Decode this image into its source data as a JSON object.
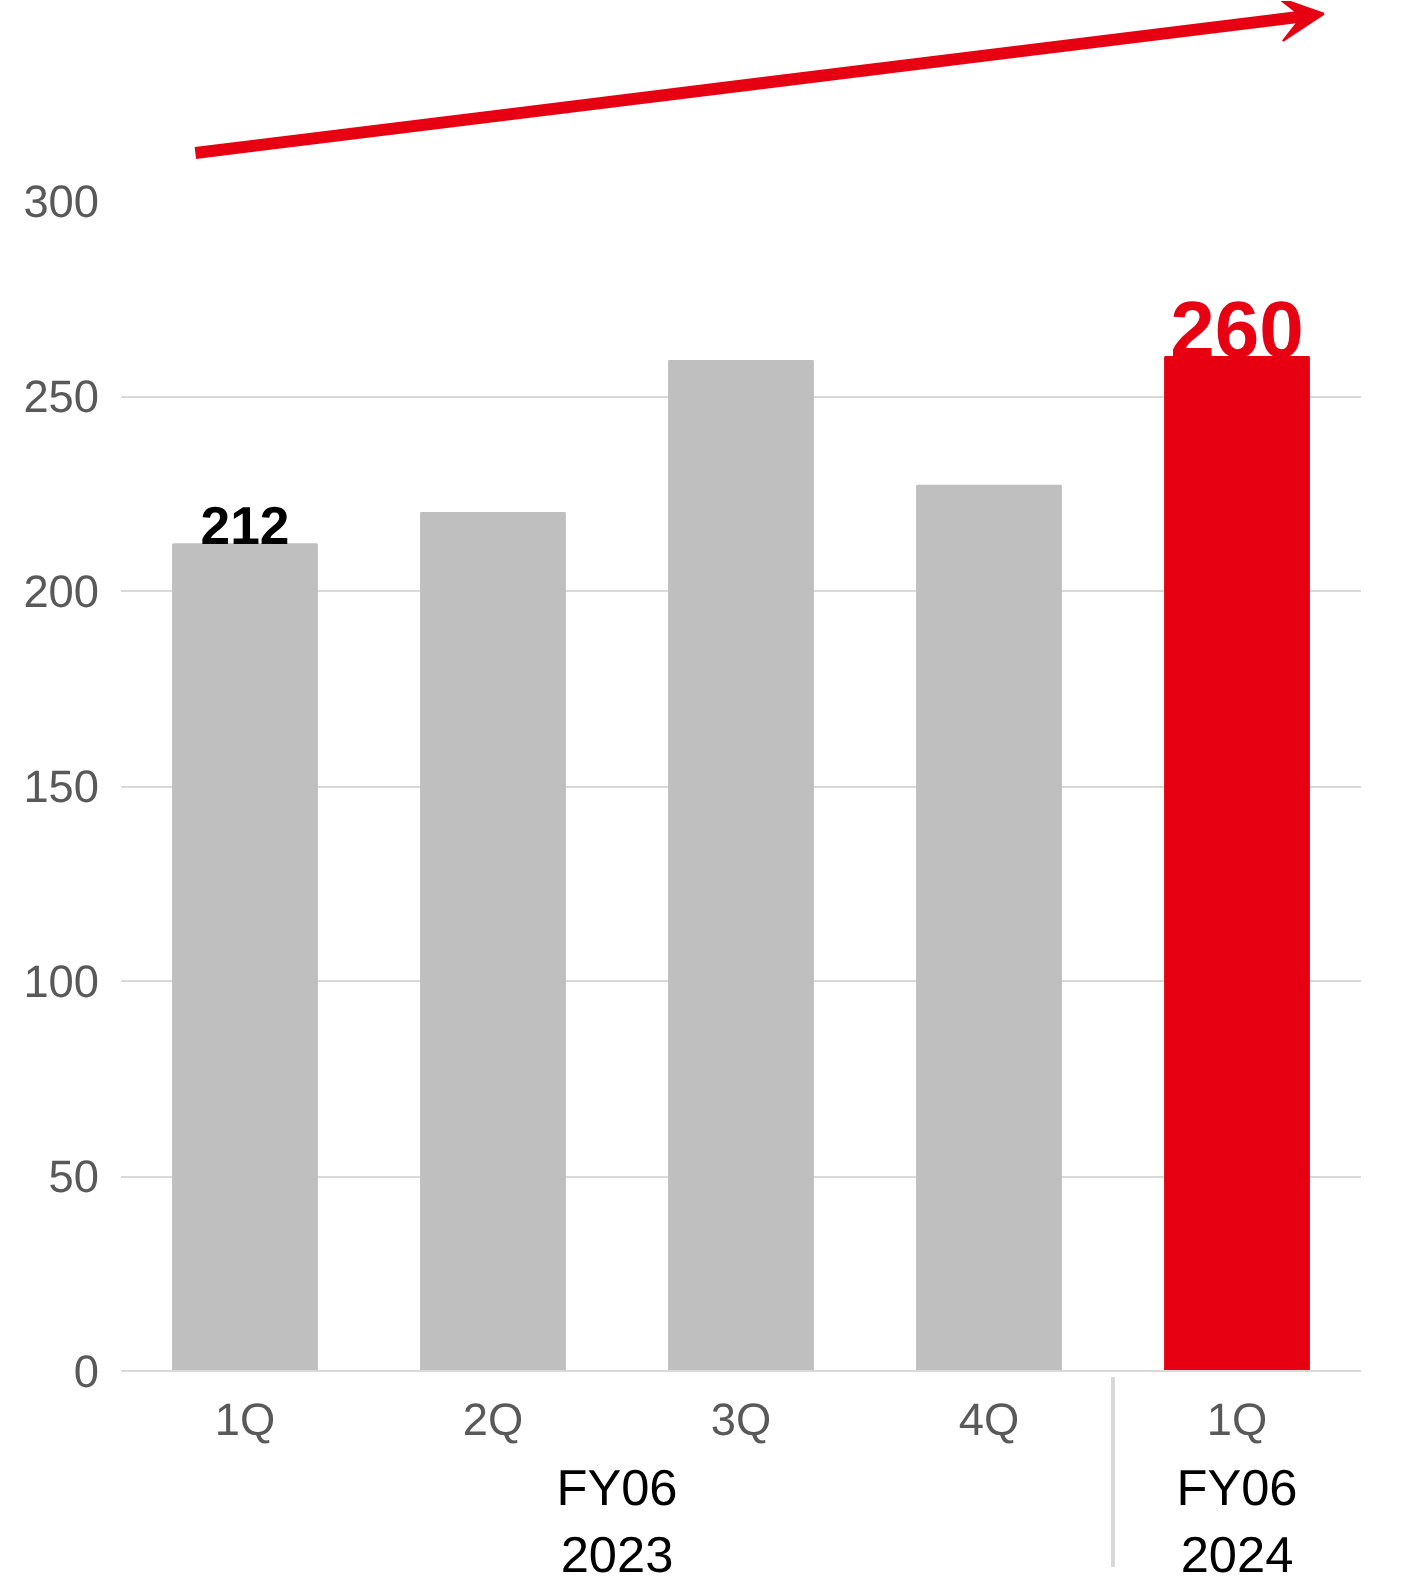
{
  "chart_data": {
    "type": "bar",
    "categories": [
      "1Q",
      "2Q",
      "3Q",
      "4Q",
      "1Q"
    ],
    "annotations": [
      "FY06\n2023",
      "FY06\n2024"
    ],
    "values": [
      212,
      220,
      259,
      227,
      260
    ],
    "colors": [
      "#bfbfbf",
      "#bfbfbf",
      "#bfbfbf",
      "#bfbfbf",
      "#e60012"
    ],
    "value_labels": [
      "212",
      null,
      null,
      null,
      "260"
    ],
    "ylim": [
      0,
      300
    ],
    "yticks": [
      0,
      50,
      100,
      150,
      200,
      250,
      300
    ],
    "grid": "y"
  }
}
